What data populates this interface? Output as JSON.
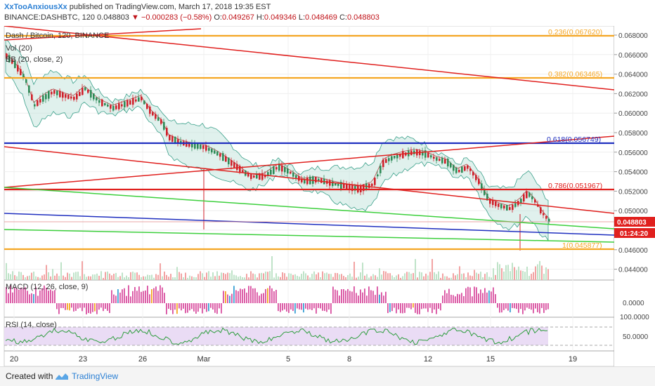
{
  "header": {
    "username": "XxTooAnxiousXx",
    "published_text": "published on TradingView.com, March 17, 2018 19:35 EST",
    "symbol_line": "BINANCE:DASHBTC, 120",
    "last_price": "0.048803",
    "change": "▼ −0.000283 (−0.58%)",
    "o_label": "O:",
    "o_value": "0.049267",
    "h_label": "H:",
    "h_value": "0.049346",
    "l_label": "L:",
    "l_value": "0.048469",
    "c_label": "C:",
    "c_value": "0.048803"
  },
  "legends": {
    "main": "Dash / Bitcoin, 120, BINANCE",
    "vol": "Vol (20)",
    "bb": "BB (20, close, 2)",
    "macd": "MACD (12, 26, close, 9)",
    "rsi": "RSI (14, close)"
  },
  "fib_labels": [
    {
      "text": "0.236(0.067620)",
      "color": "#f5a623"
    },
    {
      "text": "0.382(0.063465)",
      "color": "#f5a623"
    },
    {
      "text": "0.618(0.056749)",
      "color": "#1f2fbf"
    },
    {
      "text": "0.786(0.051967)",
      "color": "#e0201e"
    },
    {
      "text": "1(0.045877)",
      "color": "#f5a623"
    }
  ],
  "price_axis": [
    "0.068000",
    "0.066000",
    "0.064000",
    "0.062000",
    "0.060000",
    "0.058000",
    "0.056000",
    "0.054000",
    "0.052000",
    "0.050000",
    "0.048000",
    "0.046000",
    "0.044000"
  ],
  "price_tag": "0.048803",
  "time_tag": "01:24:20",
  "macd_axis": "0.0000",
  "rsi_axis": [
    "100.0000",
    "50.0000"
  ],
  "time_axis": [
    "20",
    "23",
    "26",
    "Mar",
    "5",
    "8",
    "12",
    "15",
    "19"
  ],
  "footer": {
    "created": "Created with",
    "brand": "TradingView"
  },
  "colors": {
    "accent": "#2a7fd4",
    "red": "#e0201e",
    "orange": "#f5a623",
    "blue": "#1f2fbf",
    "green": "#3ccf3c",
    "bbfill": "#c7e6df"
  }
}
